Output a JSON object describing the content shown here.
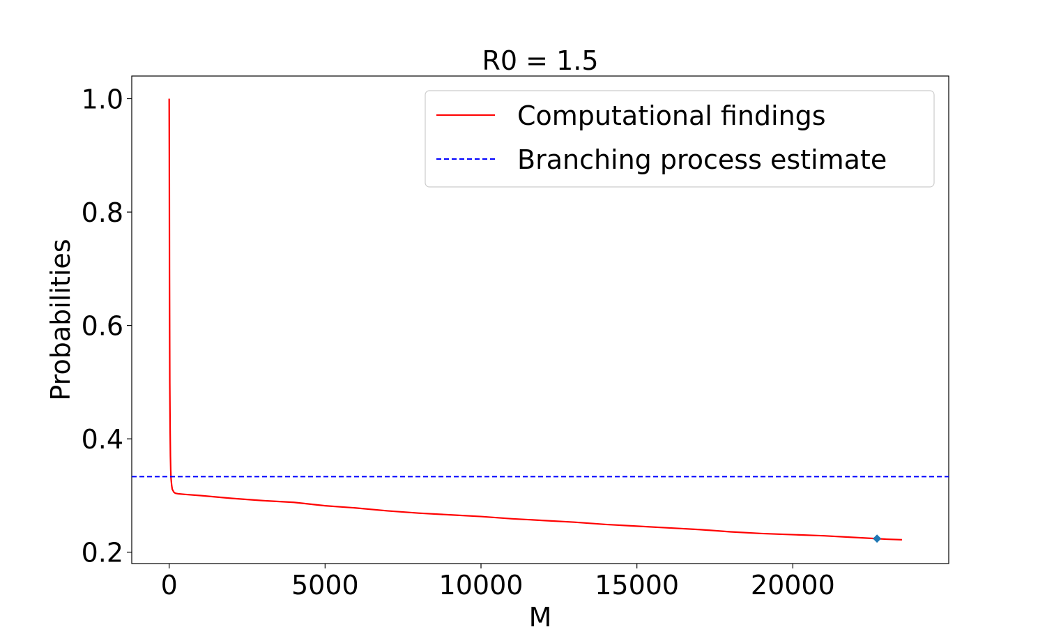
{
  "chart_data": {
    "type": "line",
    "title": "R0 = 1.5",
    "xlabel": "M",
    "ylabel": "Probabilities",
    "xlim": [
      -1200,
      25000
    ],
    "ylim": [
      0.18,
      1.04
    ],
    "xticks": [
      0,
      5000,
      10000,
      15000,
      20000
    ],
    "xtick_labels": [
      "0",
      "5000",
      "10000",
      "15000",
      "20000"
    ],
    "yticks": [
      0.2,
      0.4,
      0.6,
      0.8,
      1.0
    ],
    "ytick_labels": [
      "0.2",
      "0.4",
      "0.6",
      "0.8",
      "1.0"
    ],
    "grid": false,
    "legend_position": "top-right",
    "series": [
      {
        "name": "Computational findings",
        "color": "#ff0000",
        "style": "solid",
        "x": [
          0,
          5,
          10,
          20,
          30,
          40,
          50,
          60,
          80,
          100,
          150,
          200,
          300,
          500,
          1000,
          2000,
          3000,
          4000,
          5000,
          6000,
          7000,
          8000,
          9000,
          10000,
          11000,
          12000,
          13000,
          14000,
          15000,
          16000,
          17000,
          18000,
          19000,
          20000,
          21000,
          22000,
          23000,
          23500
        ],
        "y": [
          1.0,
          0.9,
          0.7,
          0.5,
          0.42,
          0.37,
          0.345,
          0.33,
          0.318,
          0.311,
          0.306,
          0.304,
          0.303,
          0.302,
          0.3,
          0.295,
          0.291,
          0.288,
          0.282,
          0.278,
          0.273,
          0.269,
          0.266,
          0.263,
          0.259,
          0.256,
          0.253,
          0.249,
          0.246,
          0.243,
          0.24,
          0.236,
          0.233,
          0.231,
          0.229,
          0.226,
          0.223,
          0.222
        ]
      },
      {
        "name": "Branching process estimate",
        "color": "#0000ff",
        "style": "dashed",
        "y_constant": 0.3333
      }
    ],
    "markers": [
      {
        "x": 22700,
        "y": 0.224,
        "shape": "diamond",
        "color": "#1f77b4"
      }
    ]
  }
}
